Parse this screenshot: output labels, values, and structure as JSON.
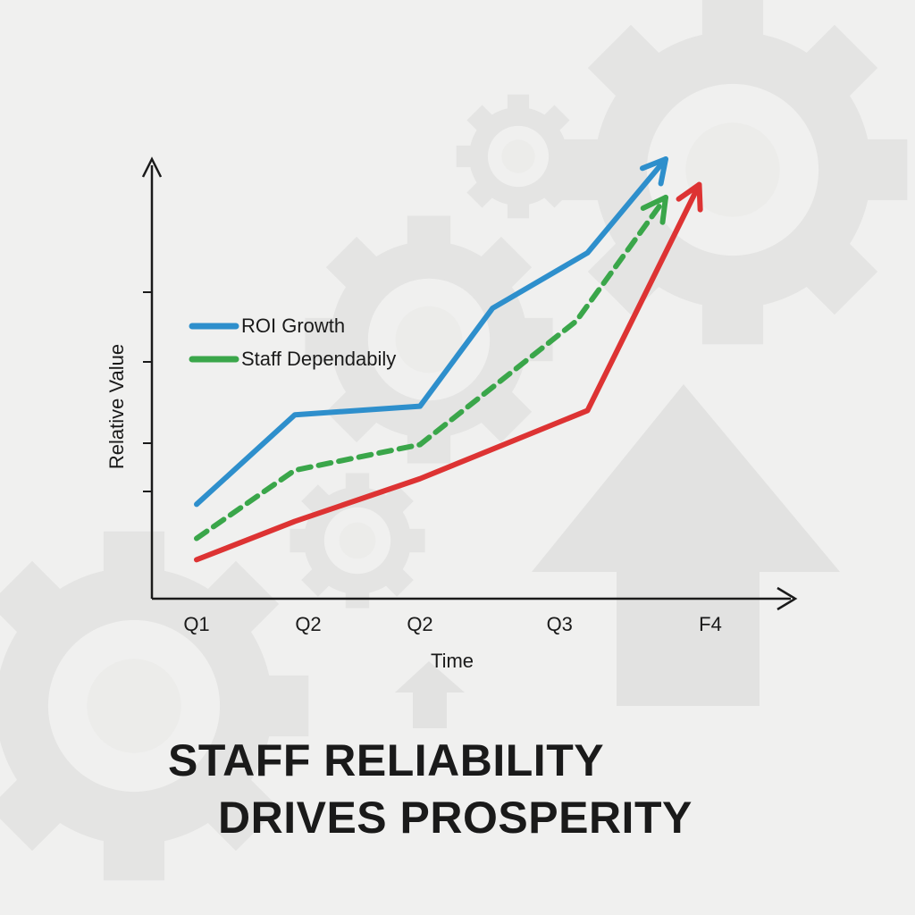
{
  "headline": {
    "line1": "STAFF RELIABILITY",
    "line2": "DRIVES PROSPERITY"
  },
  "background": {
    "icons": [
      "gear-icon",
      "up-arrow-icon"
    ],
    "tint": "#e3e3e2"
  },
  "chart_data": {
    "type": "line",
    "categories": [
      "Q1",
      "Q2",
      "Q2",
      "Q3",
      "F4"
    ],
    "xlabel": "Time",
    "ylabel": "Relative Value",
    "ylim": [
      0,
      100
    ],
    "grid": false,
    "legend_position": "upper-left",
    "series": [
      {
        "name": "ROI Growth",
        "color": "#2e8fcc",
        "style": "solid",
        "x": [
          0,
          0.88,
          2.0,
          2.65,
          3.5,
          4.2
        ],
        "y": [
          19,
          40,
          42,
          65,
          78,
          100
        ]
      },
      {
        "name": "Staff Dependabily",
        "color": "#3aa64a",
        "style": "dashed",
        "x": [
          0,
          0.88,
          2.0,
          3.4,
          4.2
        ],
        "y": [
          11,
          27,
          33,
          62,
          91
        ]
      },
      {
        "name": "",
        "color": "#dd3333",
        "style": "solid",
        "x": [
          0,
          0.88,
          2.0,
          3.5,
          4.5
        ],
        "y": [
          6,
          15,
          25,
          41,
          94
        ]
      }
    ]
  }
}
